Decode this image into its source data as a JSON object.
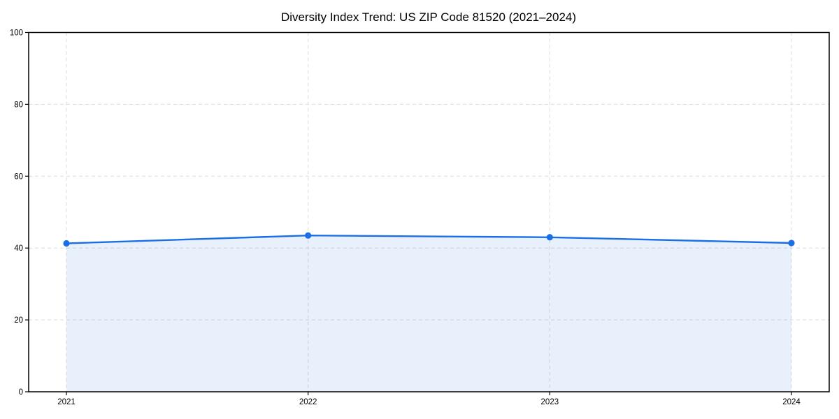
{
  "chart_data": {
    "type": "area",
    "title": "Diversity Index Trend: US ZIP Code 81520 (2021–2024)",
    "categories": [
      "2021",
      "2022",
      "2023",
      "2024"
    ],
    "series": [
      {
        "name": "Diversity Index",
        "values": [
          41.3,
          43.5,
          43.0,
          41.4
        ]
      }
    ],
    "xlabel": "",
    "ylabel": "",
    "ylim": [
      0,
      100
    ],
    "yticks": [
      0,
      20,
      40,
      60,
      80,
      100
    ],
    "grid": "dashed, both axes",
    "legend_position": "none",
    "marker": "circle"
  },
  "colors": {
    "line": "#1a6fe6",
    "marker": "#1a6fe6",
    "fill": "rgba(26,111,230,0.10)",
    "grid": "#dcdcdc",
    "axis": "#000000",
    "text": "#000000",
    "background": "#ffffff"
  }
}
